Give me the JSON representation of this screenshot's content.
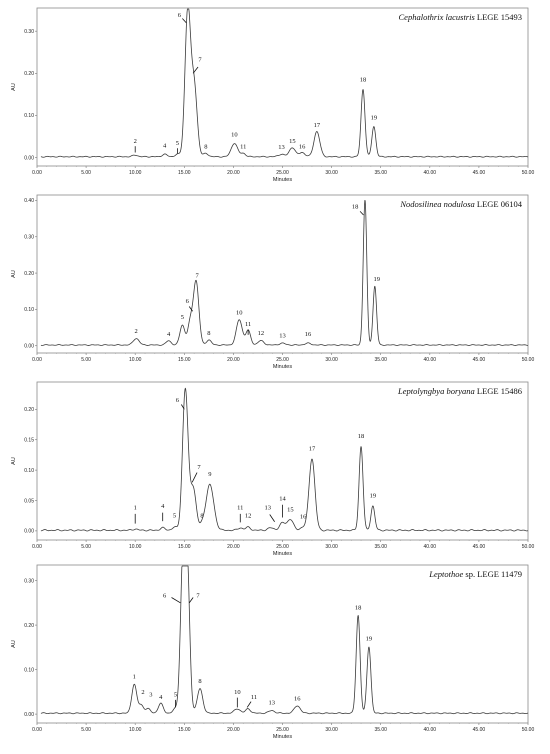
{
  "chart_data": [
    {
      "type": "line",
      "title_italic": "Cephalothrix lacustris",
      "title_rest": "LEGE 15493",
      "xlabel": "Minutes",
      "ylabel": "AU",
      "xlim": [
        0,
        50
      ],
      "ylim": [
        -0.02,
        0.355
      ],
      "xticks": [
        "0.00",
        "5.00",
        "10.00",
        "15.00",
        "20.00",
        "25.00",
        "30.00",
        "35.00",
        "40.00",
        "45.00",
        "50.00"
      ],
      "yticks": [
        0,
        0.1,
        0.2,
        0.3
      ],
      "ytick_labels": [
        "0.00",
        "0.10",
        "0.20",
        "0.30"
      ],
      "baseline": 0.002,
      "peaks": [
        {
          "label": "2",
          "t": 10.0,
          "h": 0.004,
          "w": 0.25,
          "label_t": 10.0,
          "label_y": 0.035,
          "marker": [
            10.0,
            0.027,
            10.0,
            0.012
          ]
        },
        {
          "label": "4",
          "t": 13.0,
          "h": 0.006,
          "w": 0.25,
          "label_t": 13.0,
          "label_y": 0.024,
          "marker": null
        },
        {
          "label": "5",
          "t": 14.3,
          "h": 0.006,
          "w": 0.25,
          "label_t": 14.3,
          "label_y": 0.03,
          "marker": [
            14.3,
            0.022,
            14.3,
            0.01
          ]
        },
        {
          "label": "6",
          "t": 15.35,
          "h": 0.345,
          "w": 0.28,
          "label_t": 14.5,
          "label_y": 0.334,
          "marker": [
            14.8,
            0.33,
            15.2,
            0.32
          ]
        },
        {
          "label": "7",
          "t": 16.0,
          "h": 0.17,
          "w": 0.3,
          "label_t": 16.6,
          "label_y": 0.228,
          "marker": [
            16.4,
            0.215,
            15.9,
            0.2
          ]
        },
        {
          "label": "8",
          "t": 17.2,
          "h": 0.008,
          "w": 0.25,
          "label_t": 17.2,
          "label_y": 0.022,
          "marker": null
        },
        {
          "label": "10",
          "t": 20.1,
          "h": 0.032,
          "w": 0.32,
          "label_t": 20.1,
          "label_y": 0.05,
          "marker": null
        },
        {
          "label": "11",
          "t": 21.0,
          "h": 0.008,
          "w": 0.25,
          "label_t": 21.0,
          "label_y": 0.022,
          "marker": null
        },
        {
          "label": "13",
          "t": 24.9,
          "h": 0.006,
          "w": 0.3,
          "label_t": 24.9,
          "label_y": 0.02,
          "marker": null
        },
        {
          "label": "15",
          "t": 26.0,
          "h": 0.022,
          "w": 0.3,
          "label_t": 26.0,
          "label_y": 0.035,
          "marker": null
        },
        {
          "label": "16",
          "t": 27.0,
          "h": 0.01,
          "w": 0.3,
          "label_t": 27.0,
          "label_y": 0.022,
          "marker": null
        },
        {
          "label": "17",
          "t": 28.5,
          "h": 0.06,
          "w": 0.3,
          "label_t": 28.5,
          "label_y": 0.073,
          "marker": null
        },
        {
          "label": "18",
          "t": 33.2,
          "h": 0.16,
          "w": 0.2,
          "label_t": 33.2,
          "label_y": 0.18,
          "marker": null
        },
        {
          "label": "19",
          "t": 34.3,
          "h": 0.072,
          "w": 0.2,
          "label_t": 34.3,
          "label_y": 0.09,
          "marker": null
        }
      ]
    },
    {
      "type": "line",
      "title_italic": "Nodosilinea nodulosa",
      "title_rest": "LEGE 06104",
      "xlabel": "Minutes",
      "ylabel": "AU",
      "xlim": [
        0,
        50
      ],
      "ylim": [
        -0.02,
        0.415
      ],
      "xticks": [
        "0.00",
        "5.00",
        "10.00",
        "15.00",
        "20.00",
        "25.00",
        "30.00",
        "35.00",
        "40.00",
        "45.00",
        "50.00"
      ],
      "yticks": [
        0,
        0.1,
        0.2,
        0.3,
        0.4
      ],
      "ytick_labels": [
        "0.00",
        "0.10",
        "0.20",
        "0.30",
        "0.40"
      ],
      "baseline": 0.002,
      "peaks": [
        {
          "label": "2",
          "t": 10.1,
          "h": 0.018,
          "w": 0.3,
          "label_t": 10.1,
          "label_y": 0.035,
          "marker": null
        },
        {
          "label": "4",
          "t": 13.4,
          "h": 0.012,
          "w": 0.25,
          "label_t": 13.4,
          "label_y": 0.027,
          "marker": null
        },
        {
          "label": "5",
          "t": 14.8,
          "h": 0.055,
          "w": 0.25,
          "label_t": 14.8,
          "label_y": 0.073,
          "marker": null
        },
        {
          "label": "6",
          "t": 15.6,
          "h": 0.06,
          "w": 0.25,
          "label_t": 15.3,
          "label_y": 0.118,
          "marker": [
            15.5,
            0.108,
            15.85,
            0.095
          ]
        },
        {
          "label": "7",
          "t": 16.2,
          "h": 0.175,
          "w": 0.28,
          "label_t": 16.3,
          "label_y": 0.188,
          "marker": null
        },
        {
          "label": "8",
          "t": 17.5,
          "h": 0.014,
          "w": 0.25,
          "label_t": 17.5,
          "label_y": 0.03,
          "marker": null
        },
        {
          "label": "10",
          "t": 20.6,
          "h": 0.07,
          "w": 0.3,
          "label_t": 20.6,
          "label_y": 0.086,
          "marker": null
        },
        {
          "label": "11",
          "t": 21.5,
          "h": 0.04,
          "w": 0.25,
          "label_t": 21.5,
          "label_y": 0.055,
          "marker": [
            21.5,
            0.045,
            21.5,
            0.03
          ]
        },
        {
          "label": "12",
          "t": 22.8,
          "h": 0.012,
          "w": 0.3,
          "label_t": 22.8,
          "label_y": 0.03,
          "marker": null
        },
        {
          "label": "13",
          "t": 25.0,
          "h": 0.005,
          "w": 0.3,
          "label_t": 25.0,
          "label_y": 0.022,
          "marker": null
        },
        {
          "label": "16",
          "t": 27.6,
          "h": 0.005,
          "w": 0.3,
          "label_t": 27.6,
          "label_y": 0.027,
          "marker": null
        },
        {
          "label": "18",
          "t": 33.4,
          "h": 0.4,
          "w": 0.18,
          "label_t": 32.4,
          "label_y": 0.378,
          "marker": [
            32.9,
            0.37,
            33.25,
            0.36
          ]
        },
        {
          "label": "19",
          "t": 34.4,
          "h": 0.162,
          "w": 0.18,
          "label_t": 34.6,
          "label_y": 0.178,
          "marker": null
        }
      ]
    },
    {
      "type": "line",
      "title_italic": "Leptolyngbya boryana",
      "title_rest": "LEGE 15486",
      "xlabel": "Minutes",
      "ylabel": "AU",
      "xlim": [
        0,
        50
      ],
      "ylim": [
        -0.015,
        0.245
      ],
      "xticks": [
        "0.00",
        "5.00",
        "10.00",
        "15.00",
        "20.00",
        "25.00",
        "30.00",
        "35.00",
        "40.00",
        "45.00",
        "50.00"
      ],
      "yticks": [
        0,
        0.05,
        0.1,
        0.15,
        0.2
      ],
      "ytick_labels": [
        "0.00",
        "0.05",
        "0.10",
        "0.15",
        "0.20"
      ],
      "baseline": 0.001,
      "peaks": [
        {
          "label": "1",
          "t": 10.0,
          "h": 0.002,
          "w": 0.25,
          "label_t": 10.0,
          "label_y": 0.035,
          "marker": [
            10.0,
            0.028,
            10.0,
            0.012
          ]
        },
        {
          "label": "4",
          "t": 12.8,
          "h": 0.004,
          "w": 0.25,
          "label_t": 12.8,
          "label_y": 0.038,
          "marker": [
            12.8,
            0.03,
            12.8,
            0.016
          ]
        },
        {
          "label": "5",
          "t": 14.0,
          "h": 0.005,
          "w": 0.25,
          "label_t": 14.0,
          "label_y": 0.022,
          "marker": null
        },
        {
          "label": "6",
          "t": 15.1,
          "h": 0.232,
          "w": 0.28,
          "label_t": 14.3,
          "label_y": 0.212,
          "marker": [
            14.7,
            0.208,
            15.0,
            0.2
          ]
        },
        {
          "label": "7",
          "t": 15.9,
          "h": 0.07,
          "w": 0.3,
          "label_t": 16.5,
          "label_y": 0.102,
          "marker": [
            16.3,
            0.096,
            15.8,
            0.08
          ]
        },
        {
          "label": "8",
          "t": 16.8,
          "h": 0.006,
          "w": 0.25,
          "label_t": 16.8,
          "label_y": 0.022,
          "marker": null
        },
        {
          "label": "9",
          "t": 17.6,
          "h": 0.075,
          "w": 0.4,
          "label_t": 17.6,
          "label_y": 0.09,
          "marker": null
        },
        {
          "label": "11",
          "t": 20.7,
          "h": 0.004,
          "w": 0.25,
          "label_t": 20.7,
          "label_y": 0.035,
          "marker": [
            20.7,
            0.028,
            20.7,
            0.014
          ]
        },
        {
          "label": "12",
          "t": 21.5,
          "h": 0.005,
          "w": 0.25,
          "label_t": 21.5,
          "label_y": 0.022,
          "marker": null
        },
        {
          "label": "13",
          "t": 23.8,
          "h": 0.004,
          "w": 0.3,
          "label_t": 23.5,
          "label_y": 0.035,
          "marker": [
            23.7,
            0.027,
            24.2,
            0.015
          ]
        },
        {
          "label": "14",
          "t": 25.0,
          "h": 0.012,
          "w": 0.3,
          "label_t": 25.0,
          "label_y": 0.05,
          "marker": [
            25.0,
            0.043,
            25.0,
            0.022
          ]
        },
        {
          "label": "15",
          "t": 25.8,
          "h": 0.018,
          "w": 0.3,
          "label_t": 25.8,
          "label_y": 0.032,
          "marker": null
        },
        {
          "label": "16",
          "t": 27.1,
          "h": 0.005,
          "w": 0.3,
          "label_t": 27.1,
          "label_y": 0.02,
          "marker": null
        },
        {
          "label": "17",
          "t": 28.0,
          "h": 0.118,
          "w": 0.3,
          "label_t": 28.0,
          "label_y": 0.132,
          "marker": null
        },
        {
          "label": "18",
          "t": 33.0,
          "h": 0.138,
          "w": 0.2,
          "label_t": 33.0,
          "label_y": 0.153,
          "marker": null
        },
        {
          "label": "19",
          "t": 34.2,
          "h": 0.04,
          "w": 0.2,
          "label_t": 34.2,
          "label_y": 0.055,
          "marker": null
        }
      ]
    },
    {
      "type": "line",
      "title_italic": "Leptothoe",
      "title_rest": "sp. LEGE 11479",
      "xlabel": "Minutes",
      "ylabel": "AU",
      "xlim": [
        0,
        50
      ],
      "ylim": [
        -0.02,
        0.335
      ],
      "xticks": [
        "0.00",
        "5.00",
        "10.00",
        "15.00",
        "20.00",
        "25.00",
        "30.00",
        "35.00",
        "40.00",
        "45.00",
        "50.00"
      ],
      "yticks": [
        0,
        0.1,
        0.2,
        0.3
      ],
      "ytick_labels": [
        "0.00",
        "0.10",
        "0.20",
        "0.30"
      ],
      "baseline": 0.002,
      "peaks": [
        {
          "label": "1",
          "t": 9.9,
          "h": 0.065,
          "w": 0.25,
          "label_t": 9.9,
          "label_y": 0.08,
          "marker": null
        },
        {
          "label": "2",
          "t": 10.6,
          "h": 0.018,
          "w": 0.25,
          "label_t": 10.8,
          "label_y": 0.045,
          "marker": null
        },
        {
          "label": "3",
          "t": 11.3,
          "h": 0.01,
          "w": 0.25,
          "label_t": 11.6,
          "label_y": 0.04,
          "marker": null
        },
        {
          "label": "4",
          "t": 12.6,
          "h": 0.022,
          "w": 0.25,
          "label_t": 12.6,
          "label_y": 0.034,
          "marker": null
        },
        {
          "label": "5",
          "t": 14.1,
          "h": 0.01,
          "w": 0.25,
          "label_t": 14.1,
          "label_y": 0.04,
          "marker": [
            14.1,
            0.032,
            14.1,
            0.015
          ]
        },
        {
          "label": "6",
          "t": 14.85,
          "h": 0.325,
          "w": 0.25,
          "label_t": 13.0,
          "label_y": 0.262,
          "marker": [
            13.7,
            0.262,
            14.6,
            0.25
          ]
        },
        {
          "label": "7",
          "t": 15.3,
          "h": 0.32,
          "w": 0.25,
          "label_t": 16.4,
          "label_y": 0.262,
          "marker": [
            15.9,
            0.262,
            15.5,
            0.25
          ]
        },
        {
          "label": "8",
          "t": 16.6,
          "h": 0.055,
          "w": 0.28,
          "label_t": 16.6,
          "label_y": 0.07,
          "marker": null
        },
        {
          "label": "10",
          "t": 20.4,
          "h": 0.01,
          "w": 0.3,
          "label_t": 20.4,
          "label_y": 0.045,
          "marker": [
            20.4,
            0.037,
            20.4,
            0.015
          ]
        },
        {
          "label": "11",
          "t": 21.5,
          "h": 0.01,
          "w": 0.25,
          "label_t": 22.1,
          "label_y": 0.034,
          "marker": [
            21.8,
            0.028,
            21.4,
            0.015
          ]
        },
        {
          "label": "13",
          "t": 23.9,
          "h": 0.006,
          "w": 0.3,
          "label_t": 23.9,
          "label_y": 0.022,
          "marker": null
        },
        {
          "label": "16",
          "t": 26.5,
          "h": 0.017,
          "w": 0.3,
          "label_t": 26.5,
          "label_y": 0.03,
          "marker": null
        },
        {
          "label": "18",
          "t": 32.7,
          "h": 0.22,
          "w": 0.2,
          "label_t": 32.7,
          "label_y": 0.235,
          "marker": null
        },
        {
          "label": "19",
          "t": 33.8,
          "h": 0.15,
          "w": 0.2,
          "label_t": 33.8,
          "label_y": 0.165,
          "marker": null
        }
      ]
    }
  ]
}
